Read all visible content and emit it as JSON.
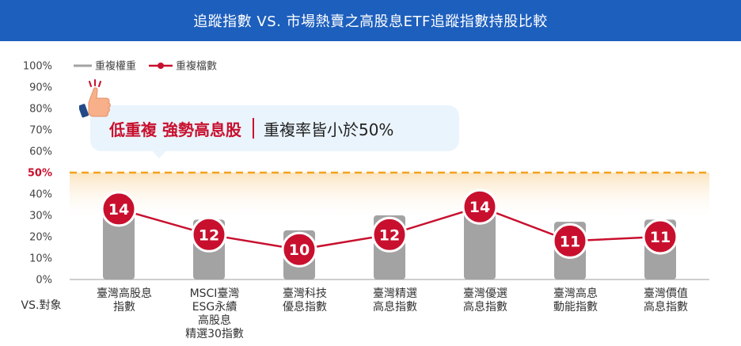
{
  "title": "追蹤指數 VS. 市場熱賣之高股息ETF追蹤指數持股比較",
  "legend": {
    "weight_label": "重複權重",
    "count_label": "重複檔數"
  },
  "callout": {
    "highlight": "低重複 強勢高息股",
    "text": "重複率皆小於50%"
  },
  "x_axis_title": "VS.對象",
  "colors": {
    "bar": "#a3a3a3",
    "line": "#c8102e",
    "threshold": "#f3a21c",
    "title_bg": "#1d5fbd"
  },
  "chart_data": {
    "type": "bar+line",
    "ylim": [
      0,
      100
    ],
    "yticks": [
      "0%",
      "10%",
      "20%",
      "30%",
      "40%",
      "50%",
      "60%",
      "70%",
      "80%",
      "90%",
      "100%"
    ],
    "threshold": 50,
    "categories": [
      [
        "臺灣高股息",
        "指數"
      ],
      [
        "MSCI臺灣",
        "ESG永續",
        "高股息",
        "精選30指數"
      ],
      [
        "臺灣科技",
        "優息指數"
      ],
      [
        "臺灣精選",
        "高息指數"
      ],
      [
        "臺灣優選",
        "高息指數"
      ],
      [
        "臺灣高息",
        "動能指數"
      ],
      [
        "臺灣價值",
        "高息指數"
      ]
    ],
    "series": [
      {
        "name": "重複權重",
        "type": "bar",
        "values": [
          32,
          28,
          23,
          30,
          35,
          27,
          28
        ]
      },
      {
        "name": "重複檔數",
        "type": "line",
        "counts": [
          14,
          12,
          10,
          12,
          14,
          11,
          11
        ],
        "y_pos": [
          33,
          21,
          14,
          21,
          34,
          18,
          20
        ]
      }
    ]
  }
}
